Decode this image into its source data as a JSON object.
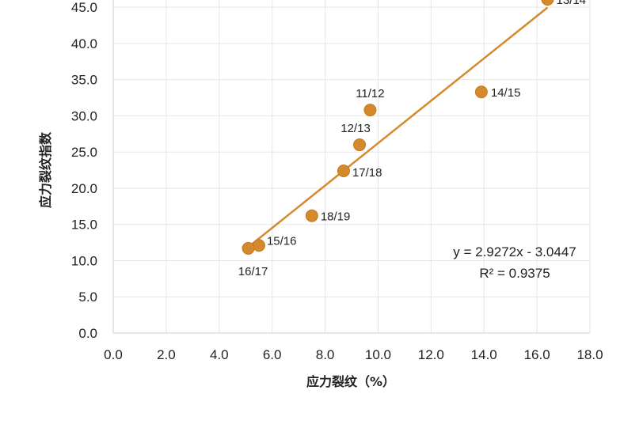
{
  "chart_data": {
    "type": "scatter",
    "xlabel": "应力裂纹（%）",
    "ylabel": "应力裂纹指数",
    "xlim": [
      0,
      18
    ],
    "ylim": [
      0,
      46
    ],
    "x_ticks": [
      "0.0",
      "2.0",
      "4.0",
      "6.0",
      "8.0",
      "10.0",
      "12.0",
      "14.0",
      "16.0",
      "18.0"
    ],
    "y_ticks": [
      "0.0",
      "5.0",
      "10.0",
      "15.0",
      "20.0",
      "25.0",
      "30.0",
      "35.0",
      "40.0",
      "45.0"
    ],
    "grid": true,
    "marker_color": "#D4892C",
    "trendline_color": "#D4892C",
    "points": [
      {
        "label": "13/14",
        "x": 16.4,
        "y": 46.1
      },
      {
        "label": "14/15",
        "x": 13.9,
        "y": 33.3
      },
      {
        "label": "11/12",
        "x": 9.7,
        "y": 30.8
      },
      {
        "label": "12/13",
        "x": 9.3,
        "y": 26.0
      },
      {
        "label": "17/18",
        "x": 8.7,
        "y": 22.4
      },
      {
        "label": "18/19",
        "x": 7.5,
        "y": 16.2
      },
      {
        "label": "15/16",
        "x": 5.5,
        "y": 12.1
      },
      {
        "label": "16/17",
        "x": 5.1,
        "y": 11.7
      }
    ],
    "trendline": {
      "slope": 2.9272,
      "intercept": -3.0447,
      "x_start": 5.1,
      "x_end": 16.4
    },
    "equation": "y = 2.9272x - 3.0447",
    "r_squared": "R² = 0.9375"
  }
}
